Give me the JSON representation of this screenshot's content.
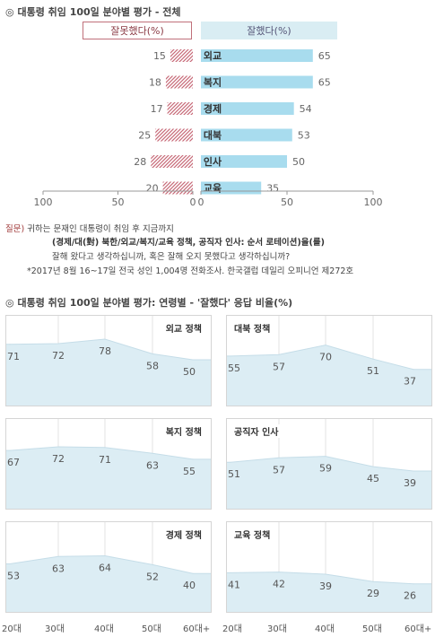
{
  "section1": {
    "marker": "◎",
    "title": "대통령 취임 100일 분야별 평가 - 전체"
  },
  "legend": {
    "negative": "잘못했다(%)",
    "positive": "잘했다(%)"
  },
  "section2": {
    "marker": "◎",
    "title": "대통령 취임 100일 분야별 평가: 연령별 - '잘했다' 응답 비율(%)"
  },
  "notes": {
    "q_prefix": "질문)",
    "q_line1": "귀하는 문재인 대통령이 취임 후 지금까지",
    "q_line2": "(경제/대(對) 북한/외교/복지/교육 정책, 공직자 인사: 순서 로테이션)을(를)",
    "q_line3": "잘해 왔다고 생각하십니까, 혹은 잘해 오지 못했다고 생각하십니까?",
    "source": "*2017년 8월 16~17일 전국 성인 1,004명 전화조사. 한국갤럽 데일리 오피니언 제272호"
  },
  "ages": [
    "20대",
    "30대",
    "40대",
    "50대",
    "60대+"
  ],
  "colors": {
    "positive": "#a8dcee",
    "negative": "#c76a78",
    "panel_fill": "#dcedf4",
    "panel_line": "#c5dde8"
  },
  "chart_data": [
    {
      "type": "bar",
      "orientation": "diverging-horizontal",
      "categories": [
        "외교",
        "복지",
        "경제",
        "대북",
        "인사",
        "교육"
      ],
      "series": [
        {
          "name": "잘못했다(%)",
          "values": [
            15,
            18,
            17,
            25,
            28,
            20
          ]
        },
        {
          "name": "잘했다(%)",
          "values": [
            65,
            65,
            54,
            53,
            50,
            35
          ]
        }
      ],
      "x_ticks_left": [
        "100",
        "50",
        "0"
      ],
      "x_ticks_right": [
        "0",
        "50",
        "100"
      ],
      "xlim": [
        0,
        100
      ]
    },
    {
      "type": "area",
      "title": "외교 정책",
      "categories": [
        "20대",
        "30대",
        "40대",
        "50대",
        "60대+"
      ],
      "values": [
        71,
        72,
        78,
        58,
        50
      ],
      "ylim": [
        0,
        100
      ]
    },
    {
      "type": "area",
      "title": "대북 정책",
      "categories": [
        "20대",
        "30대",
        "40대",
        "50대",
        "60대+"
      ],
      "values": [
        55,
        57,
        70,
        51,
        37
      ],
      "ylim": [
        0,
        100
      ]
    },
    {
      "type": "area",
      "title": "복지 정책",
      "categories": [
        "20대",
        "30대",
        "40대",
        "50대",
        "60대+"
      ],
      "values": [
        67,
        72,
        71,
        63,
        55
      ],
      "ylim": [
        0,
        100
      ]
    },
    {
      "type": "area",
      "title": "공직자 인사",
      "categories": [
        "20대",
        "30대",
        "40대",
        "50대",
        "60대+"
      ],
      "values": [
        51,
        57,
        59,
        45,
        39
      ],
      "ylim": [
        0,
        100
      ]
    },
    {
      "type": "area",
      "title": "경제 정책",
      "categories": [
        "20대",
        "30대",
        "40대",
        "50대",
        "60대+"
      ],
      "values": [
        53,
        63,
        64,
        52,
        40
      ],
      "ylim": [
        0,
        100
      ]
    },
    {
      "type": "area",
      "title": "교육 정책",
      "categories": [
        "20대",
        "30대",
        "40대",
        "50대",
        "60대+"
      ],
      "values": [
        41,
        42,
        39,
        29,
        26
      ],
      "ylim": [
        0,
        100
      ]
    }
  ]
}
